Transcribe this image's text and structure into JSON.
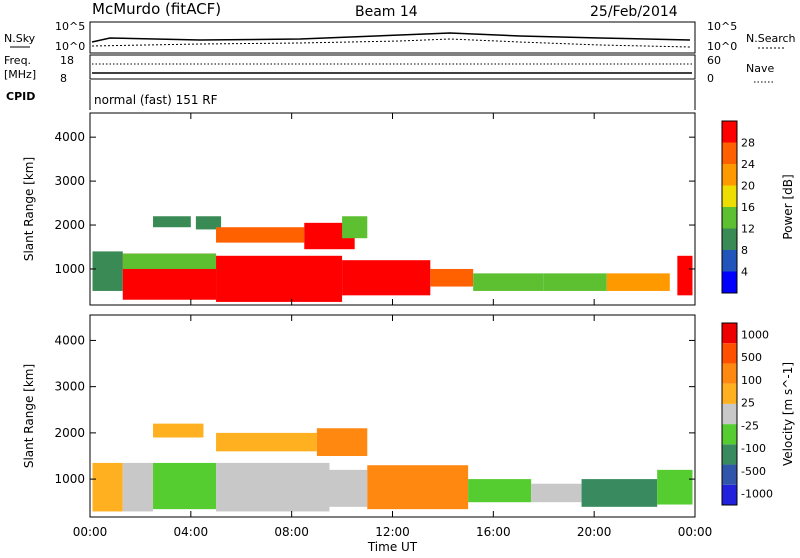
{
  "header": {
    "station": "McMurdo (fitACF)",
    "beam": "Beam 14",
    "date": "25/Feb/2014"
  },
  "top_panel": {
    "nsky_label": "N.Sky",
    "nsky_ticks": [
      "10^5",
      "10^0"
    ],
    "nsearch_label": "N.Search",
    "nsearch_ticks": [
      "10^5",
      "10^0"
    ],
    "freq_label_1": "Freq.",
    "freq_label_2": "[MHz]",
    "freq_ticks": [
      "18",
      "8"
    ],
    "nave_label": "Nave",
    "nave_ticks": [
      "60",
      "0"
    ],
    "cpid_label": "CPID",
    "cpid_text": "normal (fast) 151 RF"
  },
  "colors": {
    "power": [
      "#0000ff",
      "#2255bb",
      "#3a8a55",
      "#5cc030",
      "#eedd00",
      "#ff9900",
      "#ff6000",
      "#ff0000"
    ],
    "velocity": [
      "#2222dd",
      "#3055aa",
      "#3a8a60",
      "#55cc30",
      "#c8c8c8",
      "#ffb020",
      "#ff8810",
      "#ff5000",
      "#ee0000"
    ]
  },
  "chart_data": [
    {
      "type": "heatmap",
      "title": "",
      "xlabel": "Time UT",
      "ylabel": "Slant Range [km]",
      "x_ticks": [
        "00:00",
        "04:00",
        "08:00",
        "12:00",
        "16:00",
        "20:00",
        "00:00"
      ],
      "y_ticks": [
        "1000",
        "2000",
        "3000",
        "4000"
      ],
      "xlim": [
        0,
        24
      ],
      "ylim": [
        180,
        4550
      ],
      "colorbar_label": "Power [dB]",
      "colorbar_ticks": [
        "4",
        "8",
        "12",
        "16",
        "20",
        "24",
        "28"
      ],
      "colorbar_range": [
        0,
        32
      ],
      "regions": [
        {
          "t": [
            0.1,
            1.3
          ],
          "r": [
            500,
            1400
          ],
          "level": 2
        },
        {
          "t": [
            1.3,
            5.0
          ],
          "r": [
            300,
            1350
          ],
          "level": 7
        },
        {
          "t": [
            1.3,
            5.0
          ],
          "r": [
            1000,
            1350
          ],
          "level": 3
        },
        {
          "t": [
            5.0,
            10.0
          ],
          "r": [
            250,
            1300
          ],
          "level": 7
        },
        {
          "t": [
            10.0,
            13.5
          ],
          "r": [
            400,
            1200
          ],
          "level": 7
        },
        {
          "t": [
            13.5,
            15.2
          ],
          "r": [
            600,
            1000
          ],
          "level": 6
        },
        {
          "t": [
            15.2,
            18.0
          ],
          "r": [
            500,
            900
          ],
          "level": 3
        },
        {
          "t": [
            18.0,
            20.5
          ],
          "r": [
            500,
            900
          ],
          "level": 3
        },
        {
          "t": [
            20.5,
            23.0
          ],
          "r": [
            500,
            900
          ],
          "level": 5
        },
        {
          "t": [
            23.3,
            23.9
          ],
          "r": [
            400,
            1300
          ],
          "level": 7
        },
        {
          "t": [
            2.5,
            4.0
          ],
          "r": [
            1950,
            2200
          ],
          "level": 2
        },
        {
          "t": [
            4.2,
            5.2
          ],
          "r": [
            1900,
            2200
          ],
          "level": 2
        },
        {
          "t": [
            5.0,
            8.5
          ],
          "r": [
            1600,
            1950
          ],
          "level": 6
        },
        {
          "t": [
            8.5,
            10.5
          ],
          "r": [
            1450,
            2050
          ],
          "level": 7
        },
        {
          "t": [
            10.0,
            11.0
          ],
          "r": [
            1700,
            2200
          ],
          "level": 3
        }
      ]
    },
    {
      "type": "heatmap",
      "title": "",
      "xlabel": "Time UT",
      "ylabel": "Slant Range [km]",
      "x_ticks": [
        "00:00",
        "04:00",
        "08:00",
        "12:00",
        "16:00",
        "20:00",
        "00:00"
      ],
      "y_ticks": [
        "1000",
        "2000",
        "3000",
        "4000"
      ],
      "xlim": [
        0,
        24
      ],
      "ylim": [
        180,
        4550
      ],
      "colorbar_label": "Velocity [m s^-1]",
      "colorbar_ticks": [
        "1000",
        "500",
        "100",
        "25",
        "-25",
        "-100",
        "-500",
        "-1000"
      ],
      "regions": [
        {
          "t": [
            0.1,
            1.3
          ],
          "r": [
            300,
            1350
          ],
          "level": 5
        },
        {
          "t": [
            1.3,
            2.5
          ],
          "r": [
            300,
            1350
          ],
          "level": 4
        },
        {
          "t": [
            2.5,
            5.0
          ],
          "r": [
            350,
            1350
          ],
          "level": 3
        },
        {
          "t": [
            5.0,
            9.5
          ],
          "r": [
            300,
            1350
          ],
          "level": 4
        },
        {
          "t": [
            9.5,
            11.0
          ],
          "r": [
            400,
            1200
          ],
          "level": 4
        },
        {
          "t": [
            11.0,
            15.0
          ],
          "r": [
            350,
            1300
          ],
          "level": 6
        },
        {
          "t": [
            15.0,
            17.5
          ],
          "r": [
            500,
            1000
          ],
          "level": 3
        },
        {
          "t": [
            17.5,
            19.5
          ],
          "r": [
            500,
            900
          ],
          "level": 4
        },
        {
          "t": [
            19.5,
            22.5
          ],
          "r": [
            400,
            1000
          ],
          "level": 2
        },
        {
          "t": [
            22.5,
            23.9
          ],
          "r": [
            450,
            1200
          ],
          "level": 3
        },
        {
          "t": [
            2.5,
            4.5
          ],
          "r": [
            1900,
            2200
          ],
          "level": 5
        },
        {
          "t": [
            5.0,
            9.0
          ],
          "r": [
            1600,
            2000
          ],
          "level": 5
        },
        {
          "t": [
            9.0,
            11.0
          ],
          "r": [
            1500,
            2100
          ],
          "level": 6
        }
      ]
    }
  ]
}
